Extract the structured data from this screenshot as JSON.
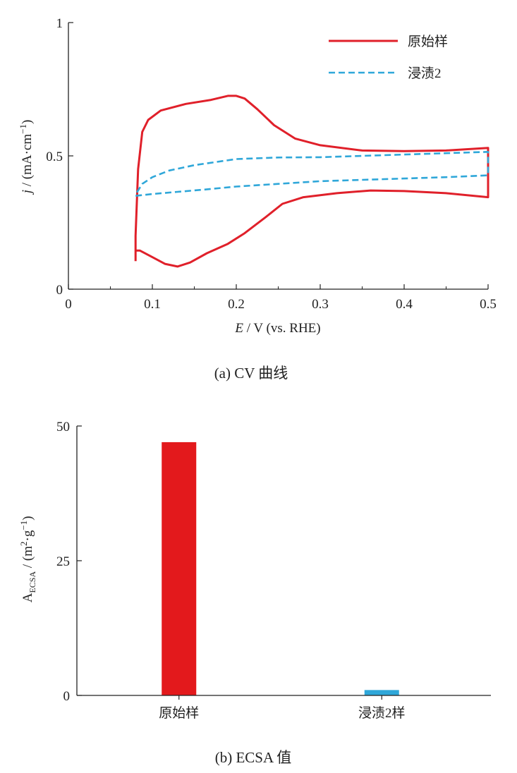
{
  "chart_data": [
    {
      "type": "line",
      "caption": "(a)  CV 曲线",
      "xlabel": {
        "symbol": "E",
        "rest": " / V (vs. RHE)"
      },
      "ylabel": {
        "symbol": "j",
        "rest": " / (mA·cm",
        "sup": "−1",
        "close": ")"
      },
      "xlim": [
        0,
        0.5
      ],
      "ylim": [
        0,
        1
      ],
      "xticks": [
        0,
        0.1,
        0.2,
        0.3,
        0.4,
        0.5
      ],
      "xtick_labels": [
        "0",
        "0.1",
        "0.2",
        "0.3",
        "0.4",
        "0.5"
      ],
      "yticks": [
        0,
        0.5,
        1
      ],
      "ytick_labels": [
        "0",
        "0.5",
        "1"
      ],
      "legend_position": "top-right",
      "series": [
        {
          "name": "原始样",
          "color": "#e0202a",
          "style": "solid",
          "points": [
            [
              0.08,
              0.105
            ],
            [
              0.08,
              0.145
            ],
            [
              0.085,
              0.145
            ],
            [
              0.1,
              0.12
            ],
            [
              0.115,
              0.095
            ],
            [
              0.13,
              0.085
            ],
            [
              0.145,
              0.1
            ],
            [
              0.165,
              0.135
            ],
            [
              0.19,
              0.17
            ],
            [
              0.21,
              0.21
            ],
            [
              0.235,
              0.27
            ],
            [
              0.255,
              0.32
            ],
            [
              0.28,
              0.345
            ],
            [
              0.32,
              0.36
            ],
            [
              0.36,
              0.37
            ],
            [
              0.4,
              0.368
            ],
            [
              0.45,
              0.36
            ],
            [
              0.5,
              0.345
            ],
            [
              0.5,
              0.53
            ],
            [
              0.45,
              0.52
            ],
            [
              0.4,
              0.518
            ],
            [
              0.35,
              0.52
            ],
            [
              0.3,
              0.54
            ],
            [
              0.27,
              0.565
            ],
            [
              0.245,
              0.615
            ],
            [
              0.225,
              0.675
            ],
            [
              0.21,
              0.715
            ],
            [
              0.2,
              0.725
            ],
            [
              0.19,
              0.725
            ],
            [
              0.17,
              0.71
            ],
            [
              0.14,
              0.695
            ],
            [
              0.11,
              0.67
            ],
            [
              0.095,
              0.635
            ],
            [
              0.088,
              0.59
            ],
            [
              0.083,
              0.45
            ],
            [
              0.08,
              0.2
            ],
            [
              0.08,
              0.105
            ]
          ]
        },
        {
          "name": "浸渍2",
          "color": "#2fa7d9",
          "style": "dashed",
          "points": [
            [
              0.08,
              0.35
            ],
            [
              0.1,
              0.357
            ],
            [
              0.13,
              0.365
            ],
            [
              0.16,
              0.373
            ],
            [
              0.2,
              0.385
            ],
            [
              0.25,
              0.395
            ],
            [
              0.3,
              0.405
            ],
            [
              0.35,
              0.41
            ],
            [
              0.4,
              0.415
            ],
            [
              0.45,
              0.42
            ],
            [
              0.5,
              0.427
            ],
            [
              0.5,
              0.515
            ],
            [
              0.45,
              0.51
            ],
            [
              0.4,
              0.505
            ],
            [
              0.35,
              0.5
            ],
            [
              0.3,
              0.495
            ],
            [
              0.25,
              0.494
            ],
            [
              0.2,
              0.488
            ],
            [
              0.15,
              0.465
            ],
            [
              0.12,
              0.445
            ],
            [
              0.1,
              0.42
            ],
            [
              0.088,
              0.395
            ],
            [
              0.08,
              0.355
            ]
          ]
        }
      ]
    },
    {
      "type": "bar",
      "caption": "(b)  ECSA 值",
      "ylabel": {
        "main": "A",
        "sub": "ECSA",
        "rest": " / (m",
        "sup1": "2",
        "mid": "·g",
        "sup2": "−1",
        "close": ")"
      },
      "ylim": [
        0,
        50
      ],
      "yticks": [
        0,
        25,
        50
      ],
      "ytick_labels": [
        "0",
        "25",
        "50"
      ],
      "categories": [
        "原始样",
        "浸渍2样"
      ],
      "values": [
        47,
        1
      ],
      "colors": [
        "#e3191c",
        "#2fa7d9"
      ]
    }
  ]
}
